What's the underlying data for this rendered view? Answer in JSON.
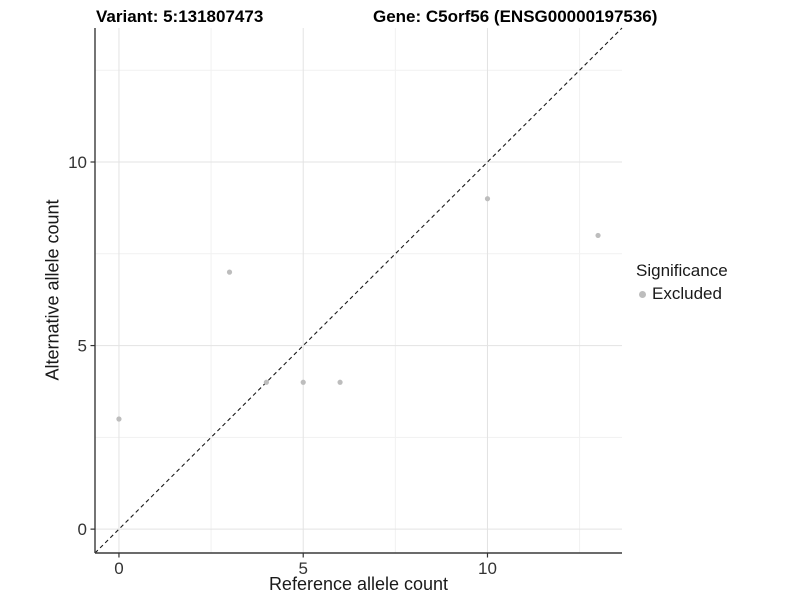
{
  "chart_data": {
    "type": "scatter",
    "title_left": "Variant: 5:131807473",
    "title_right": "Gene: C5orf56 (ENSG00000197536)",
    "xlabel": "Reference allele count",
    "ylabel": "Alternative allele count",
    "xlim": [
      0,
      13
    ],
    "ylim": [
      0,
      13
    ],
    "expansion": 0.05,
    "x_ticks": [
      0,
      5,
      10
    ],
    "y_ticks": [
      0,
      5,
      10
    ],
    "x_minor_gridlines": [
      2.5,
      7.5,
      12.5
    ],
    "y_minor_gridlines": [
      2.5,
      7.5,
      12.5
    ],
    "grid": true,
    "identity_line": {
      "style": "dashed",
      "color": "#1a1a1a",
      "equation": "y = x"
    },
    "series": [
      {
        "name": "Excluded",
        "color": "#bdbdbd",
        "points": [
          {
            "x": 0,
            "y": 3
          },
          {
            "x": 3,
            "y": 7
          },
          {
            "x": 4,
            "y": 4
          },
          {
            "x": 5,
            "y": 4
          },
          {
            "x": 6,
            "y": 4
          },
          {
            "x": 10,
            "y": 9
          },
          {
            "x": 13,
            "y": 8
          }
        ]
      }
    ],
    "legend": {
      "title": "Significance",
      "position": "right",
      "items": [
        {
          "label": "Excluded",
          "color": "#bdbdbd"
        }
      ]
    },
    "colors": {
      "background": "#ffffff",
      "grid_major": "#e3e3e3",
      "grid_minor": "#f1f1f1",
      "axis_line": "#3a3a3a",
      "tick": "#333333",
      "point": "#bdbdbd"
    }
  }
}
